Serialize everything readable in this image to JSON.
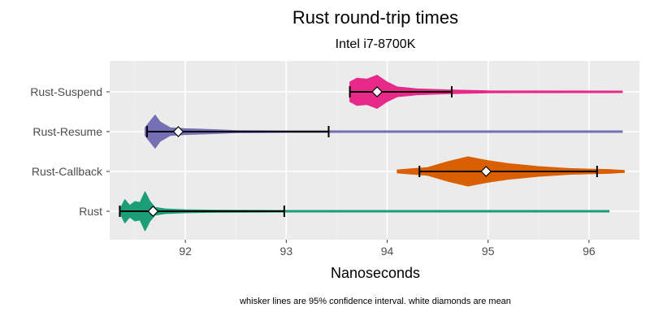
{
  "chart_data": {
    "type": "violin",
    "title": "Rust  round-trip times",
    "subtitle": "Intel i7-8700K",
    "xlabel": "Nanoseconds",
    "ylabel": "",
    "caption": "whisker lines are 95% confidence interval. white diamonds are mean",
    "xlim": [
      91.25,
      96.5
    ],
    "xticks": [
      92,
      93,
      94,
      95,
      96
    ],
    "grid": true,
    "legend": "none",
    "categories": [
      "Rust",
      "Rust-Callback",
      "Rust-Resume",
      "Rust-Suspend"
    ],
    "series": [
      {
        "name": "Rust",
        "color": "#1b9e77",
        "min": 91.35,
        "max": 96.2,
        "mean": 91.68,
        "ci": [
          91.35,
          92.98
        ],
        "density": [
          [
            91.35,
            0.08
          ],
          [
            91.4,
            0.6
          ],
          [
            91.45,
            0.3
          ],
          [
            91.5,
            0.5
          ],
          [
            91.55,
            0.45
          ],
          [
            91.6,
            1.0
          ],
          [
            91.65,
            0.5
          ],
          [
            91.7,
            0.2
          ],
          [
            91.8,
            0.12
          ],
          [
            92.0,
            0.08
          ],
          [
            92.3,
            0.06
          ],
          [
            92.6,
            0.05
          ],
          [
            93.0,
            0.04
          ],
          [
            93.5,
            0.03
          ],
          [
            94.5,
            0.03
          ],
          [
            96.2,
            0.03
          ]
        ]
      },
      {
        "name": "Rust-Callback",
        "color": "#d95f02",
        "min": 94.1,
        "max": 96.35,
        "mean": 94.98,
        "ci": [
          94.32,
          96.08
        ],
        "density": [
          [
            94.1,
            0.08
          ],
          [
            94.4,
            0.2
          ],
          [
            94.6,
            0.5
          ],
          [
            94.8,
            0.75
          ],
          [
            95.0,
            0.55
          ],
          [
            95.2,
            0.4
          ],
          [
            95.5,
            0.25
          ],
          [
            95.8,
            0.15
          ],
          [
            96.0,
            0.12
          ],
          [
            96.2,
            0.1
          ],
          [
            96.35,
            0.05
          ]
        ]
      },
      {
        "name": "Rust-Resume",
        "color": "#7570b3",
        "min": 91.6,
        "max": 96.33,
        "mean": 91.93,
        "ci": [
          91.62,
          93.42
        ],
        "density": [
          [
            91.6,
            0.2
          ],
          [
            91.7,
            0.85
          ],
          [
            91.75,
            0.5
          ],
          [
            91.85,
            0.2
          ],
          [
            92.0,
            0.15
          ],
          [
            92.3,
            0.1
          ],
          [
            92.5,
            0.06
          ],
          [
            93.0,
            0.04
          ],
          [
            93.5,
            0.03
          ],
          [
            96.33,
            0.03
          ]
        ]
      },
      {
        "name": "Rust-Suspend",
        "color": "#e7298a",
        "min": 93.63,
        "max": 96.33,
        "mean": 93.9,
        "ci": [
          93.63,
          94.64
        ],
        "density": [
          [
            93.63,
            0.5
          ],
          [
            93.7,
            0.7
          ],
          [
            93.8,
            0.65
          ],
          [
            93.9,
            0.85
          ],
          [
            94.0,
            0.5
          ],
          [
            94.1,
            0.25
          ],
          [
            94.3,
            0.15
          ],
          [
            94.6,
            0.1
          ],
          [
            95.0,
            0.05
          ],
          [
            96.33,
            0.03
          ]
        ]
      }
    ]
  }
}
